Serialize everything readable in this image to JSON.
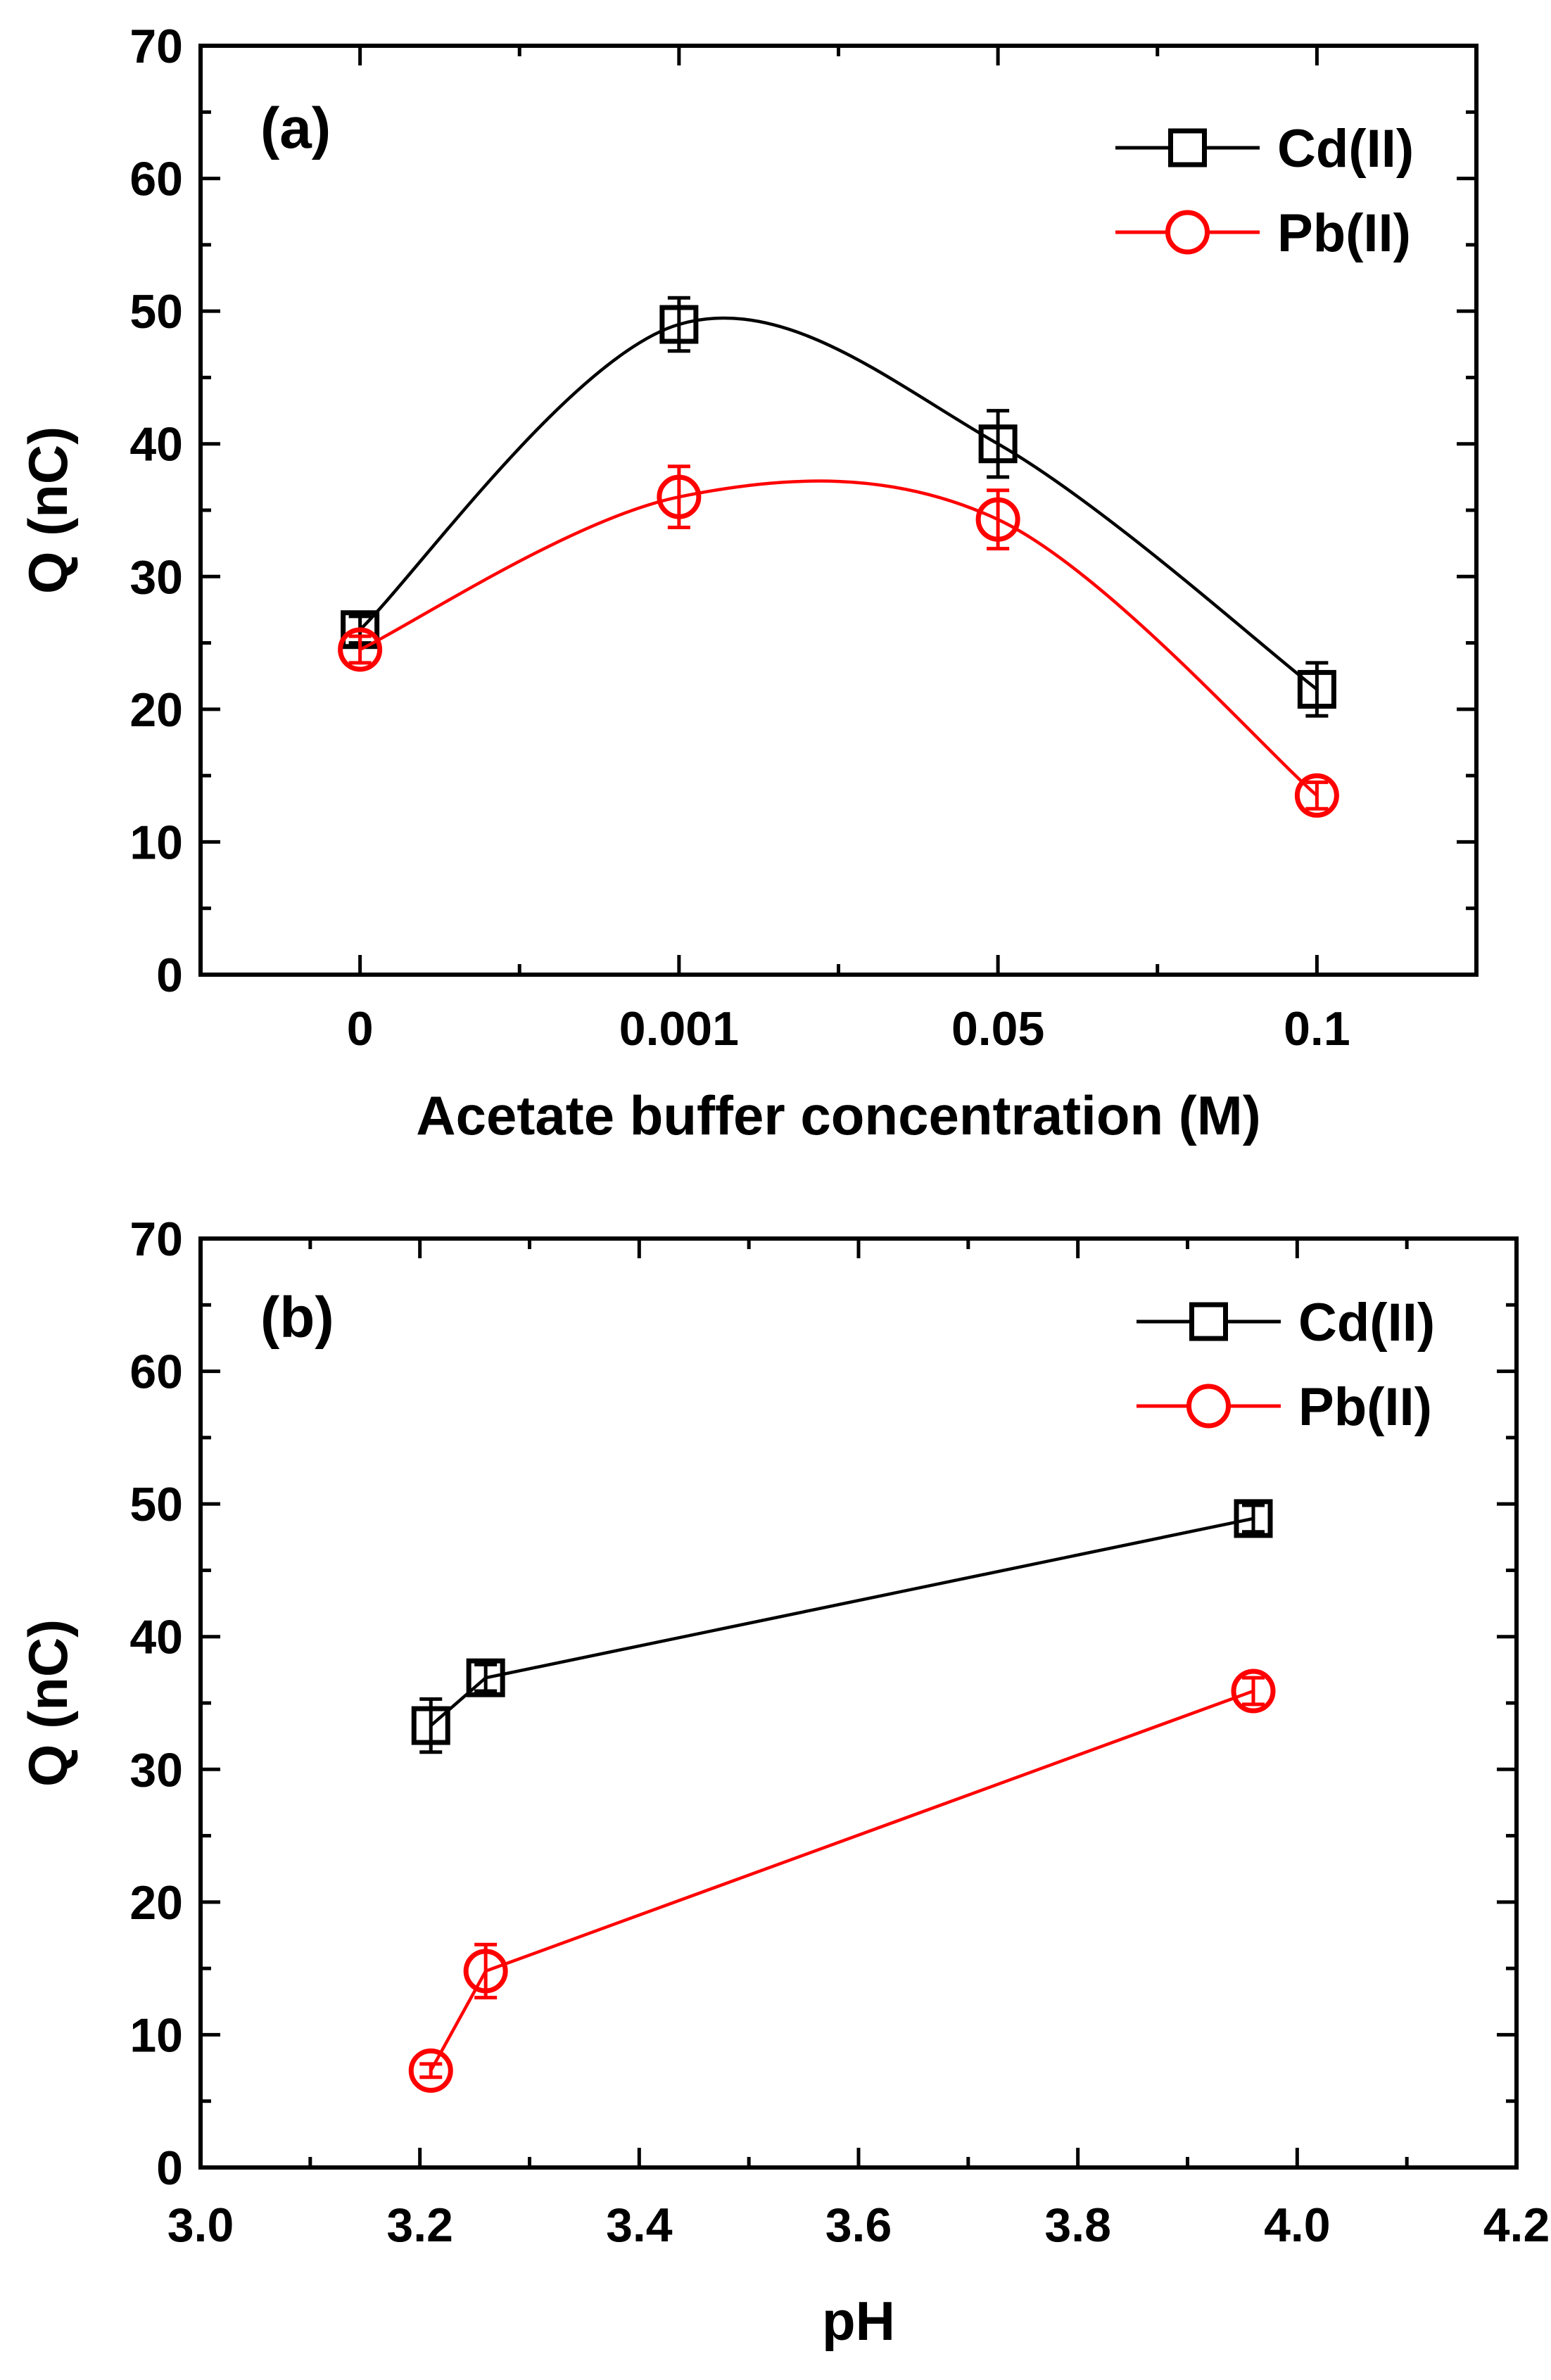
{
  "chart_data": [
    {
      "panel_label": "(a)",
      "type": "line",
      "title": "",
      "xlabel": "Acetate buffer concentration (M)",
      "ylabel": "Q (nC)",
      "x_scale": "categorical",
      "categories": [
        "0",
        "0.001",
        "0.05",
        "0.1"
      ],
      "ylim": [
        0,
        70
      ],
      "yticks": [
        0,
        10,
        20,
        30,
        40,
        50,
        60,
        70
      ],
      "ytick_labels": [
        "0",
        "10",
        "20",
        "30",
        "40",
        "50",
        "60",
        "70"
      ],
      "grid": false,
      "smooth": true,
      "legend_position": "top-right",
      "series": [
        {
          "name": "Cd(II)",
          "marker": "square",
          "color": "#000000",
          "values": [
            26,
            49,
            40,
            21.5
          ],
          "errors": [
            1,
            2,
            2.5,
            2
          ]
        },
        {
          "name": "Pb(II)",
          "marker": "circle",
          "color": "#ff0000",
          "values": [
            24.5,
            36,
            34.3,
            13.5
          ],
          "errors": [
            1,
            2.3,
            2.2,
            1
          ]
        }
      ]
    },
    {
      "panel_label": "(b)",
      "type": "line",
      "title": "",
      "xlabel": "pH",
      "ylabel": "Q (nC)",
      "x_scale": "linear",
      "xlim": [
        3.0,
        4.2
      ],
      "xticks": [
        3.0,
        3.2,
        3.4,
        3.6,
        3.8,
        4.0,
        4.2
      ],
      "xtick_labels": [
        "3.0",
        "3.2",
        "3.4",
        "3.6",
        "3.8",
        "4.0",
        "4.2"
      ],
      "ylim": [
        0,
        70
      ],
      "yticks": [
        0,
        10,
        20,
        30,
        40,
        50,
        60,
        70
      ],
      "ytick_labels": [
        "0",
        "10",
        "20",
        "30",
        "40",
        "50",
        "60",
        "70"
      ],
      "grid": false,
      "smooth": false,
      "legend_position": "top-right",
      "series": [
        {
          "name": "Cd(II)",
          "marker": "square",
          "color": "#000000",
          "x": [
            3.21,
            3.26,
            3.96
          ],
          "values": [
            33.3,
            36.9,
            48.9
          ],
          "errors": [
            2,
            1,
            1
          ]
        },
        {
          "name": "Pb(II)",
          "marker": "circle",
          "color": "#ff0000",
          "x": [
            3.21,
            3.26,
            3.96
          ],
          "values": [
            7.3,
            14.8,
            35.9
          ],
          "errors": [
            0.5,
            2,
            1
          ]
        }
      ]
    }
  ]
}
